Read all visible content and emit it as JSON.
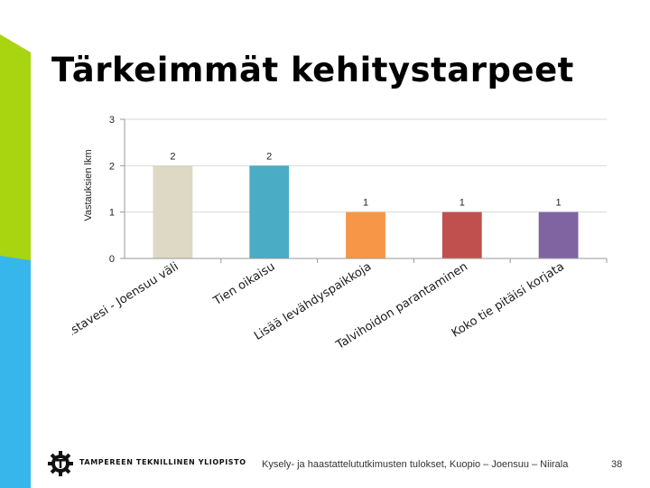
{
  "slide": {
    "title": "Tärkeimmät kehitystarpeet",
    "university_name": "TAMPEREEN TEKNILLINEN YLIOPISTO",
    "footer_text": "Kysely- ja haastattelututkimusten tulokset, Kuopio – Joensuu – Niirala",
    "page_number": "38",
    "logo_icon": "gear-logo-icon",
    "accent_colors": {
      "green": "#a8d410",
      "blue": "#36b6ea"
    }
  },
  "chart_data": {
    "type": "bar",
    "categories": [
      "Riistavesi - Joensuu väli",
      "Tien oikaisu",
      "Lisää levähdyspaikkoja",
      "Talvihoidon parantaminen",
      "Koko tie pitäisi korjata"
    ],
    "values": [
      2,
      2,
      1,
      1,
      1
    ],
    "data_labels": [
      "2",
      "2",
      "1",
      "1",
      "1"
    ],
    "colors": [
      "#ddd9c4",
      "#4bacc6",
      "#f79646",
      "#c0504d",
      "#8064a2"
    ],
    "ylabel": "Vastauksien lkm",
    "xlabel": "",
    "ylim": [
      0,
      3
    ],
    "yticks": [
      0,
      1,
      2,
      3
    ],
    "grid": true
  }
}
